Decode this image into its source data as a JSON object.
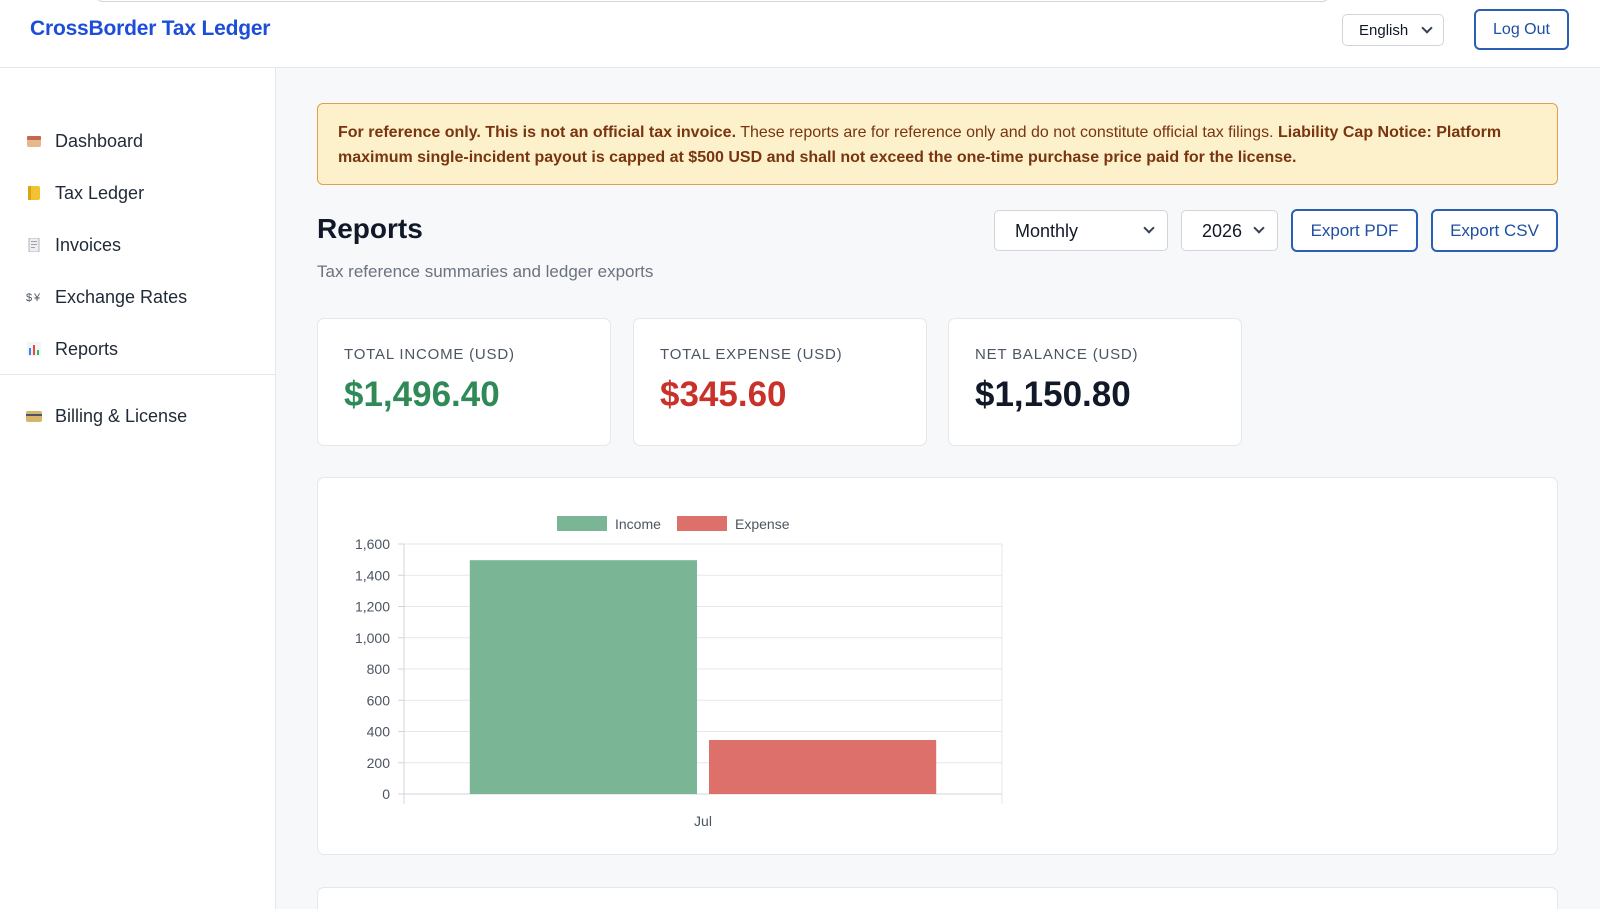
{
  "app": {
    "brand": "CrossBorder Tax Ledger"
  },
  "header": {
    "language": "English",
    "logout_label": "Log Out"
  },
  "sidebar": {
    "items": [
      {
        "label": "Dashboard",
        "icon": "calendar-icon"
      },
      {
        "label": "Tax Ledger",
        "icon": "ledger-icon"
      },
      {
        "label": "Invoices",
        "icon": "invoice-icon"
      },
      {
        "label": "Exchange Rates",
        "icon": "exchange-icon"
      },
      {
        "label": "Reports",
        "icon": "bar-chart-icon"
      }
    ],
    "secondary_items": [
      {
        "label": "Billing & License",
        "icon": "credit-card-icon"
      }
    ]
  },
  "banner": {
    "lead": "For reference only. This is not an official tax invoice.",
    "body": " These reports are for reference only and do not constitute official tax filings. ",
    "notice_title": "Liability Cap Notice:",
    "notice_body": " Platform maximum single-incident payout is capped at $500 USD and shall not exceed the one-time purchase price paid for the license."
  },
  "page": {
    "title": "Reports",
    "subtitle": "Tax reference summaries and ledger exports",
    "period_select": "Monthly",
    "year_select": "2026",
    "export_pdf": "Export PDF",
    "export_csv": "Export CSV"
  },
  "stats": [
    {
      "label": "TOTAL INCOME (USD)",
      "value": "$1,496.40",
      "color": "#2f8a57"
    },
    {
      "label": "TOTAL EXPENSE (USD)",
      "value": "$345.60",
      "color": "#c8322b"
    },
    {
      "label": "NET BALANCE (USD)",
      "value": "$1,150.80",
      "color": "#111827"
    }
  ],
  "chart_data": {
    "type": "bar",
    "categories": [
      "Jul"
    ],
    "series": [
      {
        "name": "Income",
        "values": [
          1496.4
        ],
        "color": "#7ab596"
      },
      {
        "name": "Expense",
        "values": [
          345.6
        ],
        "color": "#de706b"
      }
    ],
    "ylim": [
      0,
      1600
    ],
    "yticks": [
      "0",
      "200",
      "400",
      "600",
      "800",
      "1,000",
      "1,200",
      "1,400",
      "1,600"
    ],
    "ytick_values": [
      0,
      200,
      400,
      600,
      800,
      1000,
      1200,
      1400,
      1600
    ],
    "grid": true,
    "legend": "top"
  }
}
